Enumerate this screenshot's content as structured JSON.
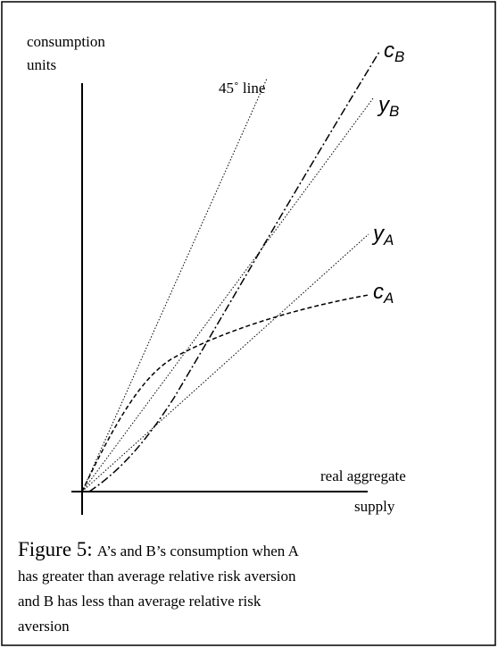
{
  "figure": {
    "y_axis_label": [
      "consumption",
      "units"
    ],
    "x_axis_label": [
      "real aggregate",
      "supply"
    ],
    "line_label": "45˚ line",
    "curves": [
      {
        "main": "c",
        "sub": "B"
      },
      {
        "main": "y",
        "sub": "B"
      },
      {
        "main": "y",
        "sub": "A"
      },
      {
        "main": "c",
        "sub": "A"
      }
    ],
    "caption": {
      "label": "Figure 5:",
      "lines": [
        "A’s and B’s consumption when A",
        "has greater than average relative risk aversion",
        "and B has less than average relative risk",
        "aversion"
      ]
    }
  }
}
